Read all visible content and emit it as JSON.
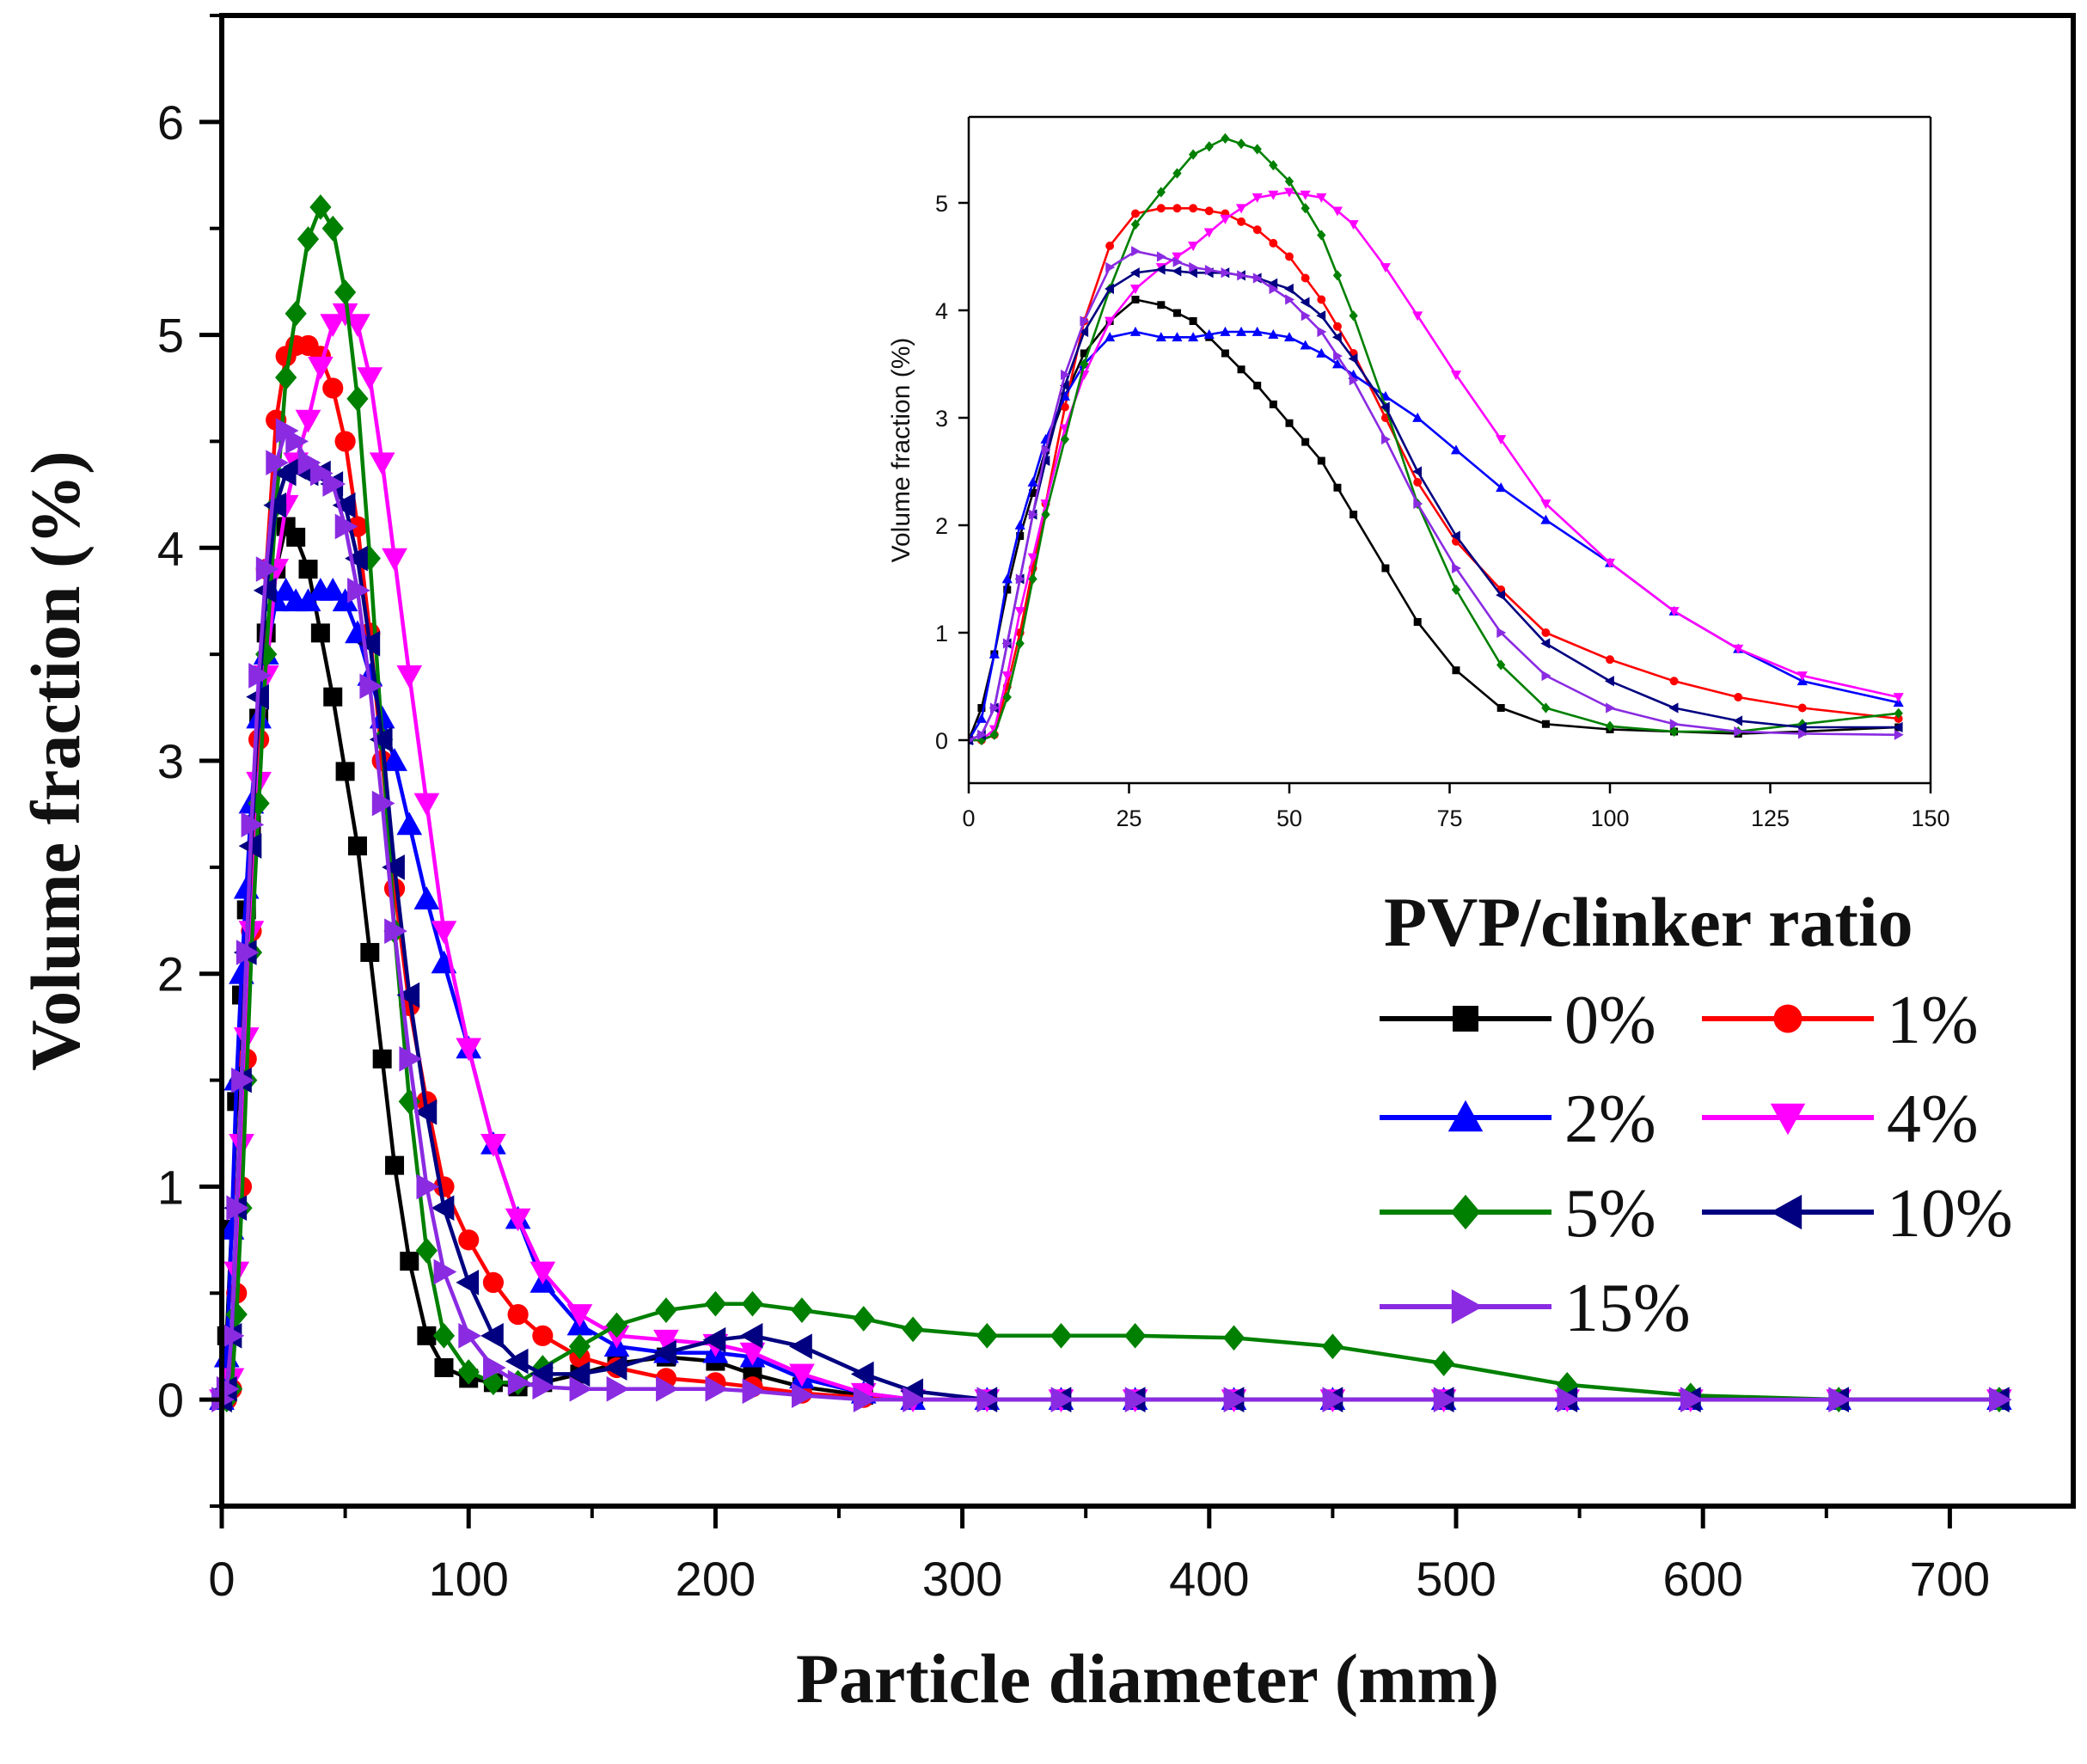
{
  "chart_data": [
    {
      "id": "main",
      "type": "line",
      "title": "",
      "xlabel": "Particle diameter (mm)",
      "ylabel": "Volume fraction (%)",
      "xlim": [
        0,
        750
      ],
      "ylim": [
        -0.5,
        6.5
      ],
      "xticks": [
        0,
        100,
        200,
        300,
        400,
        500,
        600,
        700
      ],
      "yticks": [
        0,
        1,
        2,
        3,
        4,
        5,
        6
      ],
      "grid": false,
      "legend": {
        "title": "PVP/clinker ratio",
        "placement": "right-middle",
        "entries": [
          "0%",
          "1%",
          "2%",
          "4%",
          "5%",
          "10%",
          "15%"
        ]
      },
      "series": [
        {
          "name": "0%",
          "color": "#000000",
          "marker": "square",
          "x": [
            0,
            2,
            4,
            6,
            8,
            10,
            12,
            15,
            18,
            22,
            26,
            30,
            35,
            40,
            45,
            50,
            55,
            60,
            65,
            70,
            76,
            83,
            90,
            100,
            110,
            120,
            130,
            145,
            160,
            180,
            200,
            215,
            235,
            260,
            280,
            310,
            340,
            370,
            410,
            450,
            495,
            545,
            595,
            655,
            720
          ],
          "y": [
            0,
            0.3,
            0.8,
            1.4,
            1.9,
            2.3,
            2.7,
            3.2,
            3.6,
            3.9,
            4.1,
            4.05,
            3.9,
            3.6,
            3.3,
            2.95,
            2.6,
            2.1,
            1.6,
            1.1,
            0.65,
            0.3,
            0.15,
            0.1,
            0.08,
            0.06,
            0.08,
            0.12,
            0.17,
            0.2,
            0.18,
            0.12,
            0.06,
            0.02,
            0,
            0,
            0,
            0,
            0,
            0,
            0,
            0,
            0,
            0,
            0
          ]
        },
        {
          "name": "1%",
          "color": "#ff0000",
          "marker": "circle",
          "x": [
            0,
            2,
            4,
            6,
            8,
            10,
            12,
            15,
            18,
            22,
            26,
            30,
            35,
            40,
            45,
            50,
            55,
            60,
            65,
            70,
            76,
            83,
            90,
            100,
            110,
            120,
            130,
            145,
            160,
            180,
            200,
            215,
            235,
            260,
            280,
            310,
            340,
            370,
            410,
            450,
            495,
            545,
            595,
            655,
            720
          ],
          "y": [
            0,
            0,
            0.05,
            0.5,
            1.0,
            1.6,
            2.2,
            3.1,
            3.9,
            4.6,
            4.9,
            4.95,
            4.95,
            4.9,
            4.75,
            4.5,
            4.1,
            3.6,
            3.0,
            2.4,
            1.85,
            1.4,
            1.0,
            0.75,
            0.55,
            0.4,
            0.3,
            0.2,
            0.15,
            0.1,
            0.08,
            0.06,
            0.03,
            0.01,
            0,
            0,
            0,
            0,
            0,
            0,
            0,
            0,
            0,
            0,
            0
          ]
        },
        {
          "name": "2%",
          "color": "#0000ff",
          "marker": "triangle-up",
          "x": [
            0,
            2,
            4,
            6,
            8,
            10,
            12,
            15,
            18,
            22,
            26,
            30,
            35,
            40,
            45,
            50,
            55,
            60,
            65,
            70,
            76,
            83,
            90,
            100,
            110,
            120,
            130,
            145,
            160,
            180,
            200,
            215,
            235,
            260,
            280,
            310,
            340,
            370,
            410,
            450,
            495,
            545,
            595,
            655,
            720
          ],
          "y": [
            0,
            0.2,
            0.8,
            1.5,
            2.0,
            2.4,
            2.8,
            3.2,
            3.5,
            3.75,
            3.8,
            3.75,
            3.75,
            3.8,
            3.8,
            3.75,
            3.6,
            3.4,
            3.2,
            3.0,
            2.7,
            2.35,
            2.05,
            1.65,
            1.2,
            0.85,
            0.55,
            0.35,
            0.25,
            0.22,
            0.22,
            0.2,
            0.1,
            0.03,
            0,
            0,
            0,
            0,
            0,
            0,
            0,
            0,
            0,
            0,
            0
          ]
        },
        {
          "name": "4%",
          "color": "#ff00ff",
          "marker": "triangle-down",
          "x": [
            0,
            2,
            4,
            6,
            8,
            10,
            12,
            15,
            18,
            22,
            26,
            30,
            35,
            40,
            45,
            50,
            55,
            60,
            65,
            70,
            76,
            83,
            90,
            100,
            110,
            120,
            130,
            145,
            160,
            180,
            200,
            215,
            235,
            260,
            280,
            310,
            340,
            370,
            410,
            450,
            495,
            545,
            595,
            655,
            720
          ],
          "y": [
            0,
            0,
            0.1,
            0.6,
            1.2,
            1.7,
            2.2,
            2.9,
            3.4,
            3.9,
            4.2,
            4.4,
            4.6,
            4.85,
            5.05,
            5.1,
            5.05,
            4.8,
            4.4,
            3.95,
            3.4,
            2.8,
            2.2,
            1.65,
            1.2,
            0.85,
            0.6,
            0.4,
            0.3,
            0.28,
            0.26,
            0.22,
            0.12,
            0.03,
            0,
            0,
            0,
            0,
            0,
            0,
            0,
            0,
            0,
            0,
            0
          ]
        },
        {
          "name": "5%",
          "color": "#008000",
          "marker": "diamond",
          "x": [
            0,
            2,
            4,
            6,
            8,
            10,
            12,
            15,
            18,
            22,
            26,
            30,
            35,
            40,
            45,
            50,
            55,
            60,
            65,
            70,
            76,
            83,
            90,
            100,
            110,
            120,
            130,
            145,
            160,
            180,
            200,
            215,
            235,
            260,
            280,
            310,
            340,
            370,
            410,
            450,
            495,
            545,
            595,
            655,
            720
          ],
          "y": [
            0,
            0,
            0.05,
            0.4,
            0.9,
            1.5,
            2.1,
            2.8,
            3.5,
            4.2,
            4.8,
            5.1,
            5.45,
            5.6,
            5.5,
            5.2,
            4.7,
            3.95,
            3.1,
            2.2,
            1.4,
            0.7,
            0.3,
            0.13,
            0.08,
            0.08,
            0.15,
            0.25,
            0.35,
            0.42,
            0.45,
            0.45,
            0.42,
            0.38,
            0.33,
            0.3,
            0.3,
            0.3,
            0.29,
            0.25,
            0.17,
            0.07,
            0.02,
            0,
            0
          ]
        },
        {
          "name": "10%",
          "color": "#000080",
          "marker": "triangle-left",
          "x": [
            0,
            2,
            4,
            6,
            8,
            10,
            12,
            15,
            18,
            22,
            26,
            30,
            35,
            40,
            45,
            50,
            55,
            60,
            65,
            70,
            76,
            83,
            90,
            100,
            110,
            120,
            130,
            145,
            160,
            180,
            200,
            215,
            235,
            260,
            280,
            310,
            340,
            370,
            410,
            450,
            495,
            545,
            595,
            655,
            720
          ],
          "y": [
            0,
            0.05,
            0.3,
            0.9,
            1.5,
            2.1,
            2.6,
            3.3,
            3.8,
            4.2,
            4.35,
            4.38,
            4.35,
            4.35,
            4.3,
            4.2,
            3.95,
            3.55,
            3.1,
            2.5,
            1.9,
            1.35,
            0.9,
            0.55,
            0.3,
            0.18,
            0.12,
            0.12,
            0.15,
            0.22,
            0.28,
            0.3,
            0.25,
            0.12,
            0.04,
            0,
            0,
            0,
            0,
            0,
            0,
            0,
            0,
            0,
            0
          ]
        },
        {
          "name": "15%",
          "color": "#8a2be2",
          "marker": "triangle-right",
          "x": [
            0,
            2,
            4,
            6,
            8,
            10,
            12,
            15,
            18,
            22,
            26,
            30,
            35,
            40,
            45,
            50,
            55,
            60,
            65,
            70,
            76,
            83,
            90,
            100,
            110,
            120,
            130,
            145,
            160,
            180,
            200,
            215,
            235,
            260,
            280,
            310,
            340,
            370,
            410,
            450,
            495,
            545,
            595,
            655,
            720
          ],
          "y": [
            0,
            0.05,
            0.3,
            0.9,
            1.5,
            2.1,
            2.7,
            3.4,
            3.9,
            4.4,
            4.55,
            4.5,
            4.4,
            4.35,
            4.3,
            4.1,
            3.8,
            3.35,
            2.8,
            2.2,
            1.6,
            1.0,
            0.6,
            0.3,
            0.15,
            0.08,
            0.06,
            0.05,
            0.05,
            0.05,
            0.05,
            0.04,
            0.02,
            0,
            0,
            0,
            0,
            0,
            0,
            0,
            0,
            0,
            0,
            0,
            0
          ]
        }
      ]
    },
    {
      "id": "inset",
      "type": "line",
      "title": "",
      "xlabel": "",
      "ylabel": "Volume fraction (%)",
      "xlim": [
        0,
        150
      ],
      "ylim": [
        -0.4,
        5.8
      ],
      "xticks": [
        0,
        25,
        50,
        75,
        100,
        125,
        150
      ],
      "yticks": [
        0,
        1,
        2,
        3,
        4,
        5
      ],
      "grid": false,
      "series_ref": "main"
    }
  ]
}
